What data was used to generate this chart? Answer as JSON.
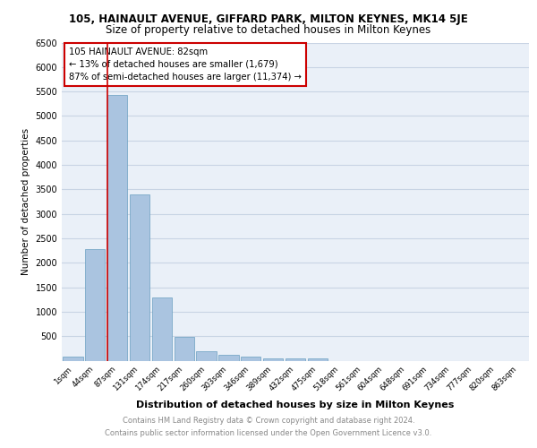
{
  "title": "105, HAINAULT AVENUE, GIFFARD PARK, MILTON KEYNES, MK14 5JE",
  "subtitle": "Size of property relative to detached houses in Milton Keynes",
  "xlabel": "Distribution of detached houses by size in Milton Keynes",
  "ylabel": "Number of detached properties",
  "categories": [
    "1sqm",
    "44sqm",
    "87sqm",
    "131sqm",
    "174sqm",
    "217sqm",
    "260sqm",
    "303sqm",
    "346sqm",
    "389sqm",
    "432sqm",
    "475sqm",
    "518sqm",
    "561sqm",
    "604sqm",
    "648sqm",
    "691sqm",
    "734sqm",
    "777sqm",
    "820sqm",
    "863sqm"
  ],
  "values": [
    80,
    2280,
    5420,
    3390,
    1290,
    490,
    200,
    110,
    80,
    40,
    40,
    40,
    0,
    0,
    0,
    0,
    0,
    0,
    0,
    0,
    0
  ],
  "bar_color": "#aac4e0",
  "bar_edge_color": "#6a9fc0",
  "red_line_index": 2,
  "annotation_title": "105 HAINAULT AVENUE: 82sqm",
  "annotation_line1": "← 13% of detached houses are smaller (1,679)",
  "annotation_line2": "87% of semi-detached houses are larger (11,374) →",
  "annotation_box_color": "#ffffff",
  "annotation_border_color": "#cc0000",
  "red_line_color": "#cc0000",
  "ylim": [
    0,
    6500
  ],
  "yticks": [
    0,
    500,
    1000,
    1500,
    2000,
    2500,
    3000,
    3500,
    4000,
    4500,
    5000,
    5500,
    6000,
    6500
  ],
  "grid_color": "#c8d4e4",
  "footer_line1": "Contains HM Land Registry data © Crown copyright and database right 2024.",
  "footer_line2": "Contains public sector information licensed under the Open Government Licence v3.0.",
  "bg_color": "#eaf0f8",
  "title_fontsize": 8.5,
  "subtitle_fontsize": 8.5
}
